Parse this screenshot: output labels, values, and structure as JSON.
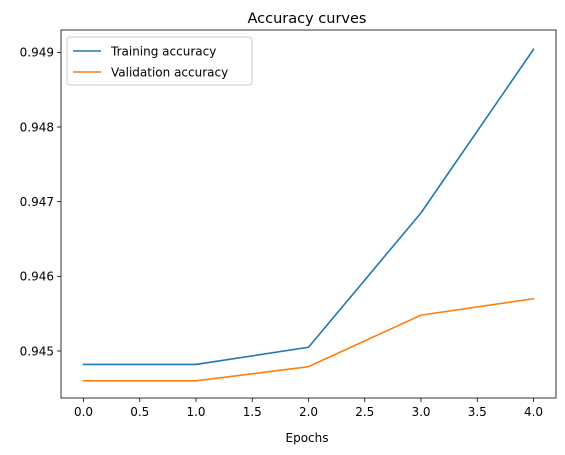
{
  "chart_data": {
    "type": "line",
    "title": "Accuracy curves",
    "xlabel": "Epochs",
    "ylabel": "",
    "x": [
      0,
      1,
      2,
      3,
      4
    ],
    "xlim": [
      -0.2,
      4.2
    ],
    "ylim": [
      0.94437,
      0.9493
    ],
    "xticks": [
      "0.0",
      "0.5",
      "1.0",
      "1.5",
      "2.0",
      "2.5",
      "3.0",
      "3.5",
      "4.0"
    ],
    "xtick_values": [
      0,
      0.5,
      1,
      1.5,
      2,
      2.5,
      3,
      3.5,
      4
    ],
    "yticks": [
      "0.945",
      "0.946",
      "0.947",
      "0.948",
      "0.949"
    ],
    "ytick_values": [
      0.945,
      0.946,
      0.947,
      0.948,
      0.949
    ],
    "grid": false,
    "legend_position": "upper-left",
    "series": [
      {
        "name": "Training accuracy",
        "color": "#1f77b4",
        "values": [
          0.94482,
          0.94482,
          0.94505,
          0.94685,
          0.94904
        ]
      },
      {
        "name": "Validation accuracy",
        "color": "#ff7f0e",
        "values": [
          0.9446,
          0.9446,
          0.94479,
          0.94548,
          0.9457
        ]
      }
    ]
  }
}
